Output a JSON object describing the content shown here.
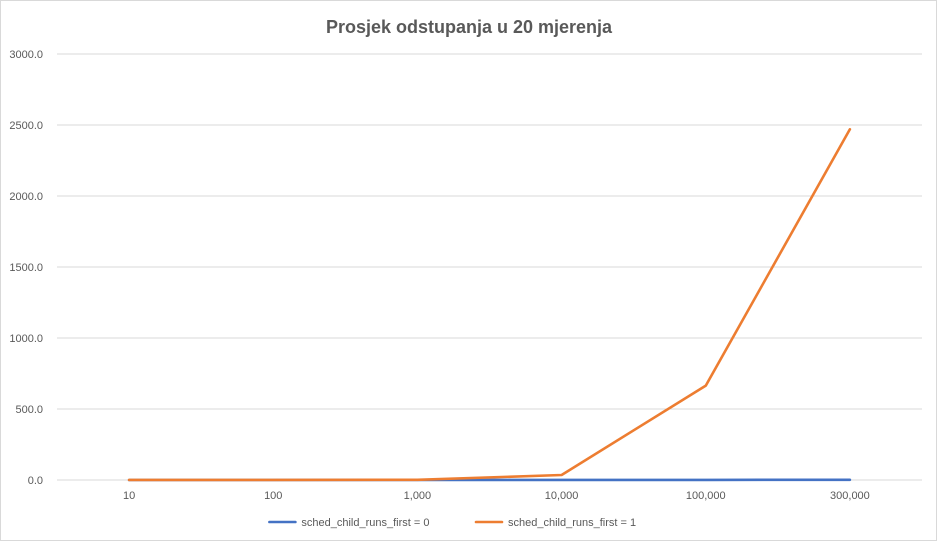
{
  "chart_data": {
    "type": "line",
    "title": "Prosjek odstupanja  u 20 mjerenja",
    "xlabel": "",
    "ylabel": "",
    "categories": [
      "10",
      "100",
      "1,000",
      "10,000",
      "100,000",
      "300,000"
    ],
    "y_ticks": [
      "0.0",
      "500.0",
      "1000.0",
      "1500.0",
      "2000.0",
      "2500.0",
      "3000.0"
    ],
    "ylim": [
      0,
      3000
    ],
    "grid": true,
    "legend_position": "bottom",
    "series": [
      {
        "name": "sched_child_runs_first = 0",
        "color": "#4472c4",
        "values": [
          0.2,
          0.3,
          0.4,
          0.5,
          1.0,
          1.5
        ]
      },
      {
        "name": "sched_child_runs_first = 1",
        "color": "#ed7d31",
        "values": [
          0.5,
          0.8,
          1.5,
          35,
          665,
          2470
        ]
      }
    ]
  }
}
